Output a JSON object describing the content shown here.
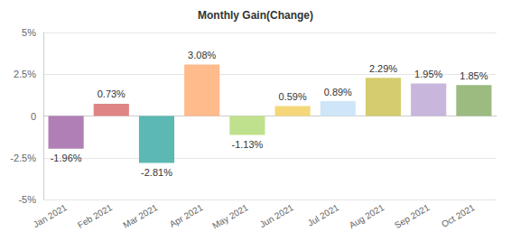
{
  "chart_data": {
    "type": "bar",
    "title": "Monthly Gain(Change)",
    "categories": [
      "Jan 2021",
      "Feb 2021",
      "Mar 2021",
      "Apr 2021",
      "May 2021",
      "Jun 2021",
      "Jul 2021",
      "Aug 2021",
      "Sep 2021",
      "Oct 2021"
    ],
    "values": [
      -1.96,
      0.73,
      -2.81,
      3.08,
      -1.13,
      0.59,
      0.89,
      2.29,
      1.95,
      1.85
    ],
    "value_labels": [
      "-1.96%",
      "0.73%",
      "-2.81%",
      "3.08%",
      "-1.13%",
      "0.59%",
      "0.89%",
      "2.29%",
      "1.95%",
      "1.85%"
    ],
    "colors": [
      "#b07fb5",
      "#e08585",
      "#5cb8b2",
      "#ffbb8c",
      "#bfe08c",
      "#f5d77a",
      "#cfe6f8",
      "#d4cc6e",
      "#c8b6dc",
      "#9cbb80"
    ],
    "ylim": [
      -5,
      5
    ],
    "yticks": [
      {
        "value": -5,
        "label": "-5%"
      },
      {
        "value": -2.5,
        "label": "-2.5%"
      },
      0,
      {
        "value": 2.5,
        "label": "2.5%"
      },
      {
        "value": 5,
        "label": "5%"
      }
    ],
    "grid": true,
    "data_labels": true
  }
}
